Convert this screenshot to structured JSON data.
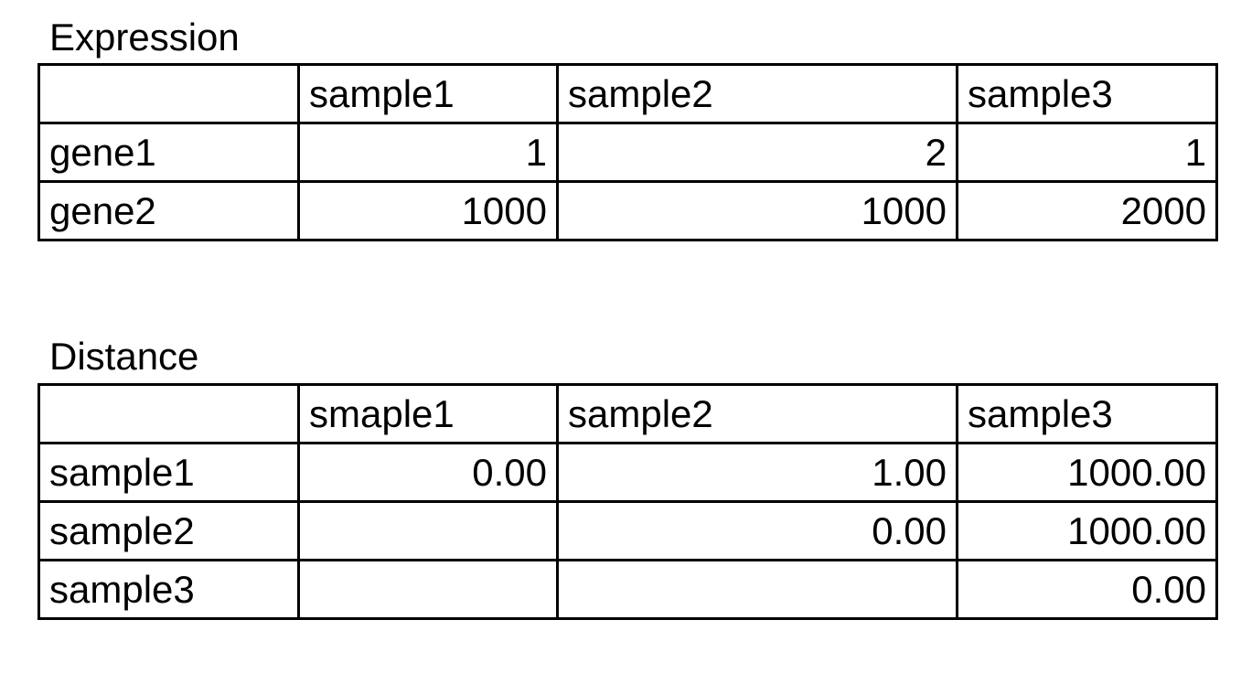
{
  "expression": {
    "title": "Expression",
    "header": [
      "",
      "sample1",
      "sample2",
      "sample3"
    ],
    "rows": [
      {
        "label": "gene1",
        "values": [
          "1",
          "2",
          "1"
        ]
      },
      {
        "label": "gene2",
        "values": [
          "1000",
          "1000",
          "2000"
        ]
      }
    ]
  },
  "distance": {
    "title": "Distance",
    "header": [
      "",
      "smaple1",
      "sample2",
      "sample3"
    ],
    "rows": [
      {
        "label": "sample1",
        "values": [
          "0.00",
          "1.00",
          "1000.00"
        ]
      },
      {
        "label": "sample2",
        "values": [
          "",
          "0.00",
          "1000.00"
        ]
      },
      {
        "label": "sample3",
        "values": [
          "",
          "",
          "0.00"
        ]
      }
    ]
  }
}
